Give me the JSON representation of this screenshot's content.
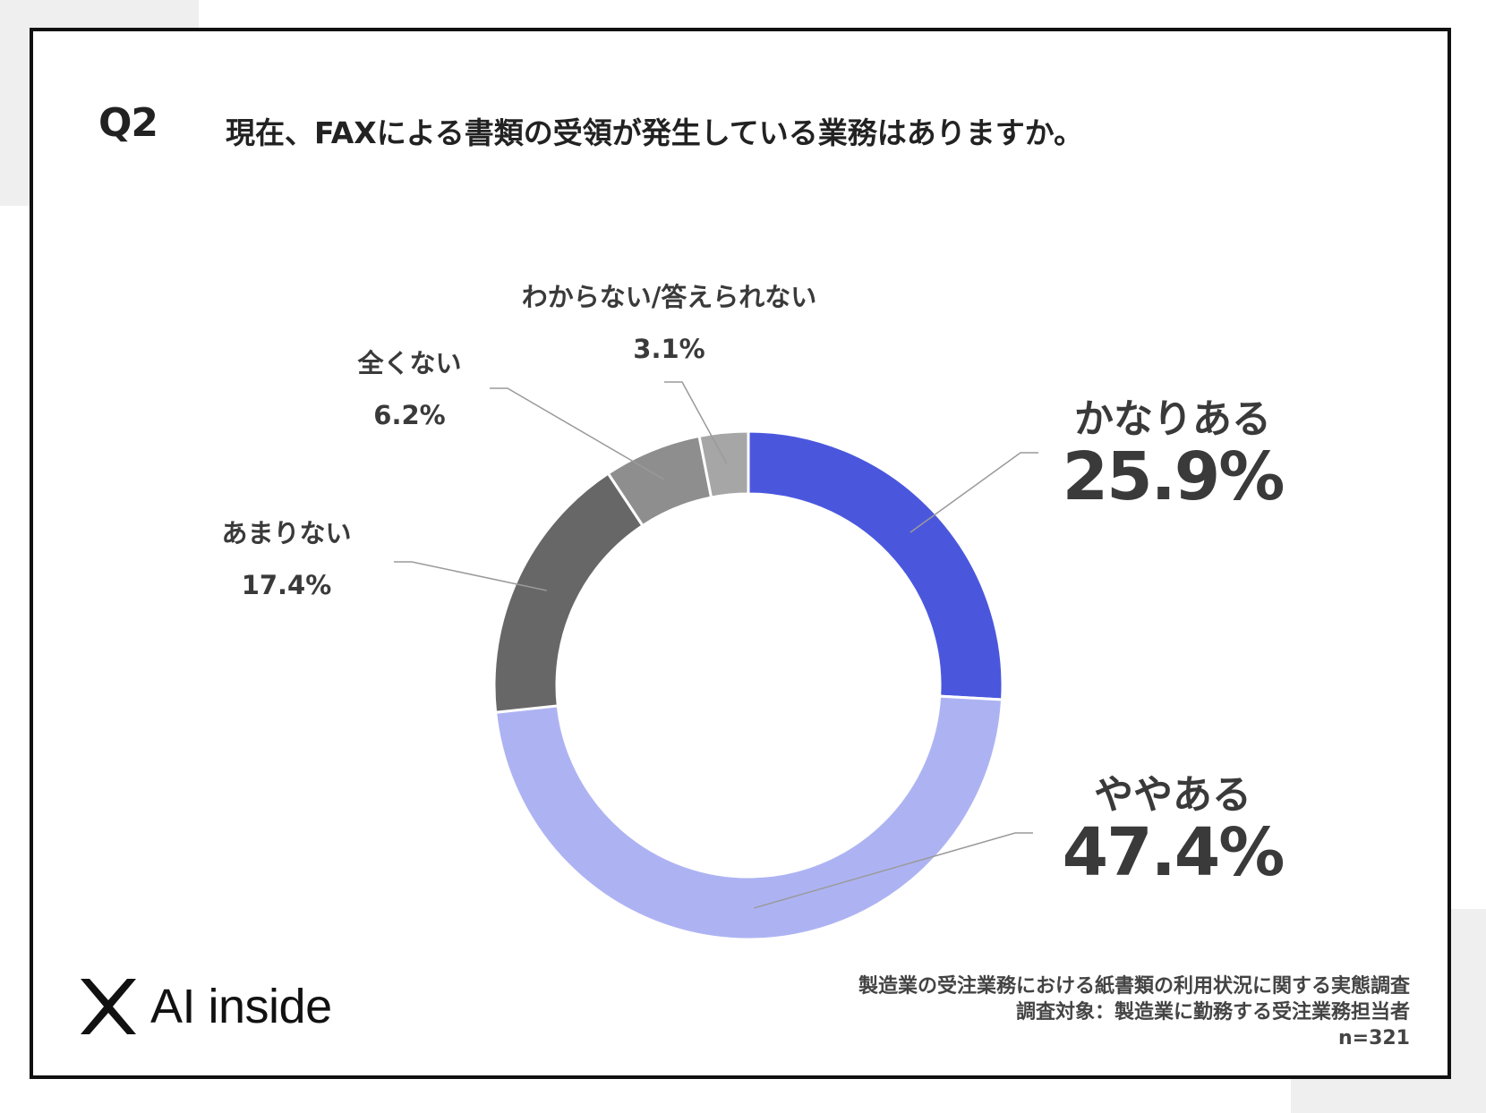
{
  "question_number": "Q2",
  "question_text": "現在、FAXによる書類の受領が発生している業務はありますか。",
  "chart_data": {
    "type": "donut",
    "categories": [
      "かなりある",
      "ややある",
      "あまりない",
      "全くない",
      "わからない/答えられない"
    ],
    "values": [
      25.9,
      47.4,
      17.4,
      6.2,
      3.1
    ],
    "value_labels": [
      "25.9%",
      "47.4%",
      "17.4%",
      "6.2%",
      "3.1%"
    ],
    "colors": [
      "#4a57dd",
      "#adb3f2",
      "#676767",
      "#8e8e8e",
      "#a6a6a6"
    ],
    "unit": "%",
    "start": "12 o'clock",
    "direction": "clockwise"
  },
  "logo": {
    "icon": "x-mark-icon",
    "text": "AI inside"
  },
  "footer": {
    "survey_title": "製造業の受注業務における紙書類の利用状況に関する実態調査",
    "target": "調査対象：製造業に勤務する受注業務担当者",
    "sample": "n=321"
  }
}
